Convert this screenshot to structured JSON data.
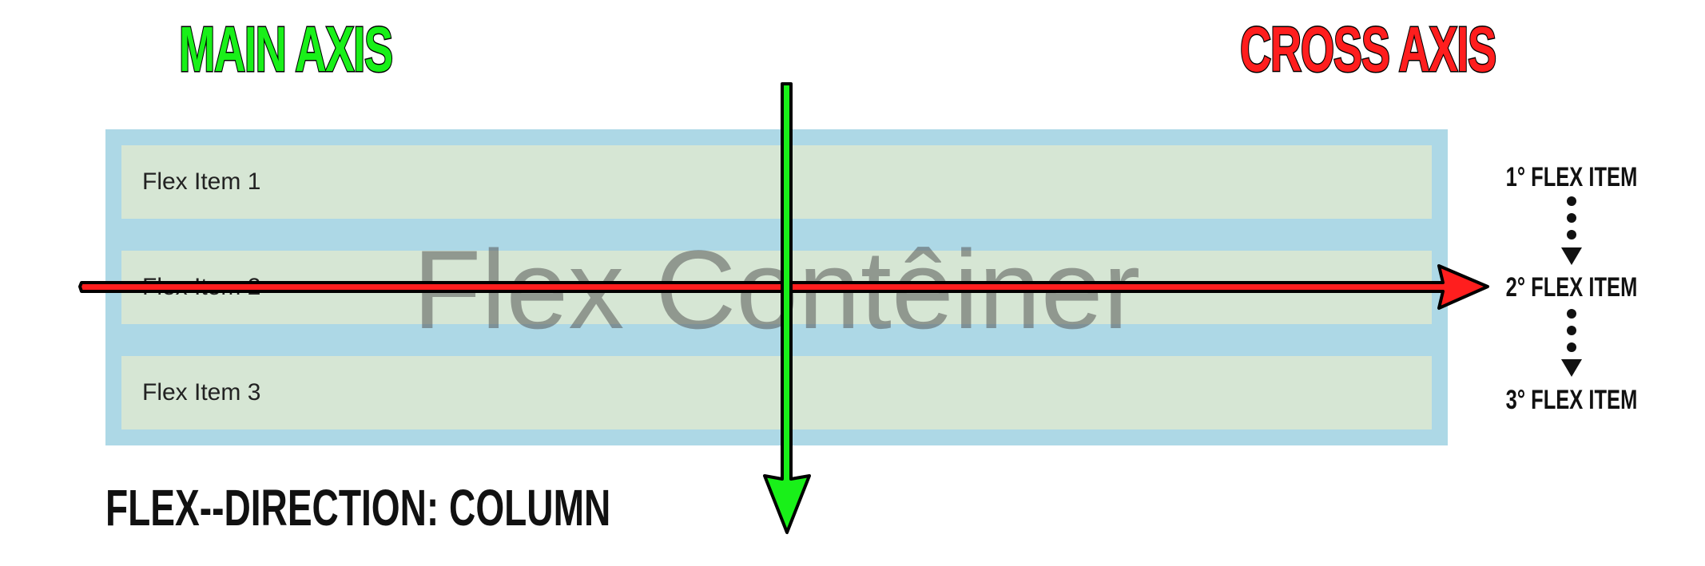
{
  "headings": {
    "main_axis": "MAIN AXIS",
    "cross_axis": "CROSS AXIS"
  },
  "container": {
    "watermark": "Flex Contêiner",
    "items": [
      "Flex Item 1",
      "Flex Item 2",
      "Flex Item 3"
    ]
  },
  "direction_label": "FLEX--DIRECTION: COLUMN",
  "order_labels": [
    "1° FLEX ITEM",
    "2° FLEX ITEM",
    "3° FLEX ITEM"
  ],
  "colors": {
    "main_axis": "#19f019",
    "cross_axis": "#ff1e1e",
    "container_bg": "#add8e6",
    "item_bg": "#d6e6d4"
  }
}
